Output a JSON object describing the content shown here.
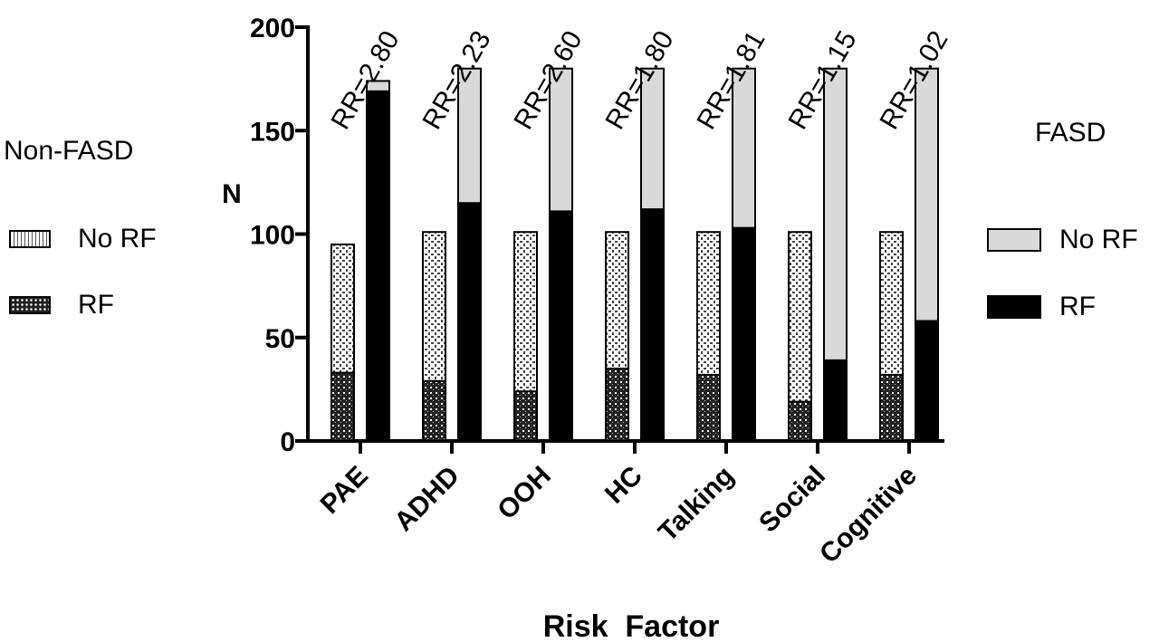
{
  "chart_data": {
    "type": "bar",
    "stacked": true,
    "categories": [
      "PAE",
      "ADHD",
      "OOH",
      "HC",
      "Talking",
      "Social",
      "Cognitive"
    ],
    "groups": [
      {
        "name": "Non-FASD",
        "series": [
          {
            "name": "RF",
            "values": [
              33,
              29,
              24,
              35,
              32,
              19,
              32
            ]
          },
          {
            "name": "No RF",
            "values": [
              62,
              72,
              77,
              66,
              69,
              82,
              69
            ]
          }
        ]
      },
      {
        "name": "FASD",
        "series": [
          {
            "name": "RF",
            "values": [
              169,
              115,
              111,
              112,
              103,
              39,
              58
            ]
          },
          {
            "name": "No RF",
            "values": [
              5,
              65,
              69,
              68,
              77,
              141,
              122
            ]
          }
        ]
      }
    ],
    "annotations": [
      "RR=2.80",
      "RR=2.23",
      "RR=2.60",
      "RR=1.80",
      "RR=1.81",
      "RR=1.15",
      "RR=1.02"
    ],
    "xlabel": "Risk  Factor",
    "ylabel": "N",
    "ylim": [
      0,
      200
    ],
    "yticks": [
      0,
      50,
      100,
      150,
      200
    ]
  },
  "legend_left": {
    "title": "Non-FASD",
    "items": [
      {
        "label": "No  RF"
      },
      {
        "label": "RF"
      }
    ]
  },
  "legend_right": {
    "title": "FASD",
    "items": [
      {
        "label": "No RF"
      },
      {
        "label": "RF"
      }
    ]
  },
  "colors": {
    "fasd_rf": "#000000",
    "fasd_no_rf": "#d9d9d9",
    "axis": "#000000"
  }
}
